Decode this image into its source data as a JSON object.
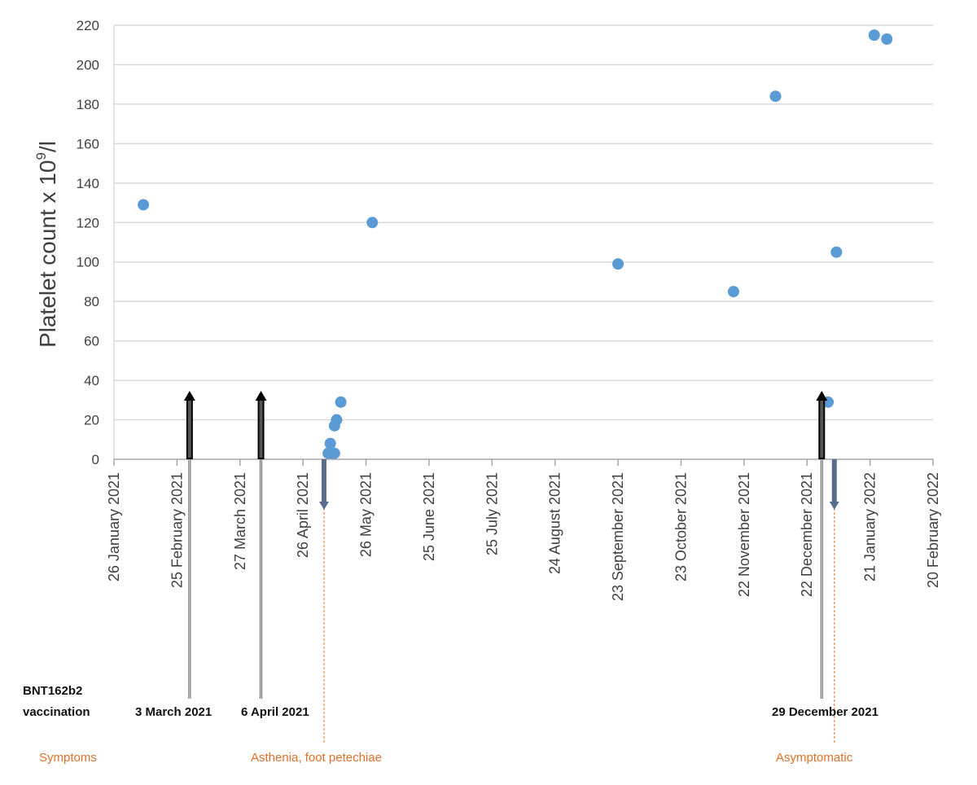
{
  "chart_data": {
    "type": "scatter",
    "ylabel": "Platelet count x 10",
    "ylabel_sup": "9",
    "ylabel_suffix": "/l",
    "ylim": [
      0,
      220
    ],
    "yticks": [
      0,
      20,
      40,
      60,
      80,
      100,
      120,
      140,
      160,
      180,
      200,
      220
    ],
    "xlim": [
      "2021-01-26",
      "2022-02-20"
    ],
    "xticks": [
      {
        "date": "2021-01-26",
        "label": "26 January 2021"
      },
      {
        "date": "2021-02-25",
        "label": "25 February 2021"
      },
      {
        "date": "2021-03-27",
        "label": "27 March 2021"
      },
      {
        "date": "2021-04-26",
        "label": "26 April 2021"
      },
      {
        "date": "2021-05-26",
        "label": "26 May 2021"
      },
      {
        "date": "2021-06-25",
        "label": "25 June 2021"
      },
      {
        "date": "2021-07-25",
        "label": "25 July 2021"
      },
      {
        "date": "2021-08-24",
        "label": "24 August 2021"
      },
      {
        "date": "2021-09-23",
        "label": "23 September 2021"
      },
      {
        "date": "2021-10-23",
        "label": "23 October 2021"
      },
      {
        "date": "2021-11-22",
        "label": "22 November 2021"
      },
      {
        "date": "2021-12-22",
        "label": "22 December 2021"
      },
      {
        "date": "2022-01-21",
        "label": "21 January 2022"
      },
      {
        "date": "2022-02-20",
        "label": "20 February 2022"
      }
    ],
    "grid": true,
    "series": [
      {
        "color": "#5b9bd5",
        "points": [
          {
            "x": "2021-02-09",
            "y": 129
          },
          {
            "x": "2021-05-08",
            "y": 3
          },
          {
            "x": "2021-05-09",
            "y": 8
          },
          {
            "x": "2021-05-10",
            "y": 3
          },
          {
            "x": "2021-05-11",
            "y": 3
          },
          {
            "x": "2021-05-11",
            "y": 17
          },
          {
            "x": "2021-05-12",
            "y": 20
          },
          {
            "x": "2021-05-14",
            "y": 29
          },
          {
            "x": "2021-05-29",
            "y": 120
          },
          {
            "x": "2021-09-23",
            "y": 99
          },
          {
            "x": "2021-11-17",
            "y": 85
          },
          {
            "x": "2021-12-07",
            "y": 184
          },
          {
            "x": "2022-01-01",
            "y": 29
          },
          {
            "x": "2022-01-05",
            "y": 105
          },
          {
            "x": "2022-01-23",
            "y": 215
          },
          {
            "x": "2022-01-29",
            "y": 213
          }
        ]
      }
    ],
    "vaccination_events": [
      {
        "date": "2021-03-03",
        "label": "3 March 2021"
      },
      {
        "date": "2021-04-06",
        "label": "6 April 2021"
      },
      {
        "date": "2021-12-29",
        "label": "29 December 2021"
      }
    ],
    "symptom_events": [
      {
        "date": "2021-05-06",
        "label": "Asthenia, foot petechiae"
      },
      {
        "date": "2022-01-04",
        "label": "Asymptomatic"
      }
    ]
  },
  "annotations": {
    "vaccination_line1": "BNT162b2",
    "vaccination_line2": "vaccination",
    "symptoms_label": "Symptoms"
  },
  "colors": {
    "point": "#5b9bd5",
    "grid": "#d9d9d9",
    "axis": "#a6a6a6",
    "vaccination_arrow": "#000000",
    "symptom_arrow": "#5a6b8c",
    "symptom_line": "#f0a070",
    "symptom_text": "#e0702a"
  }
}
